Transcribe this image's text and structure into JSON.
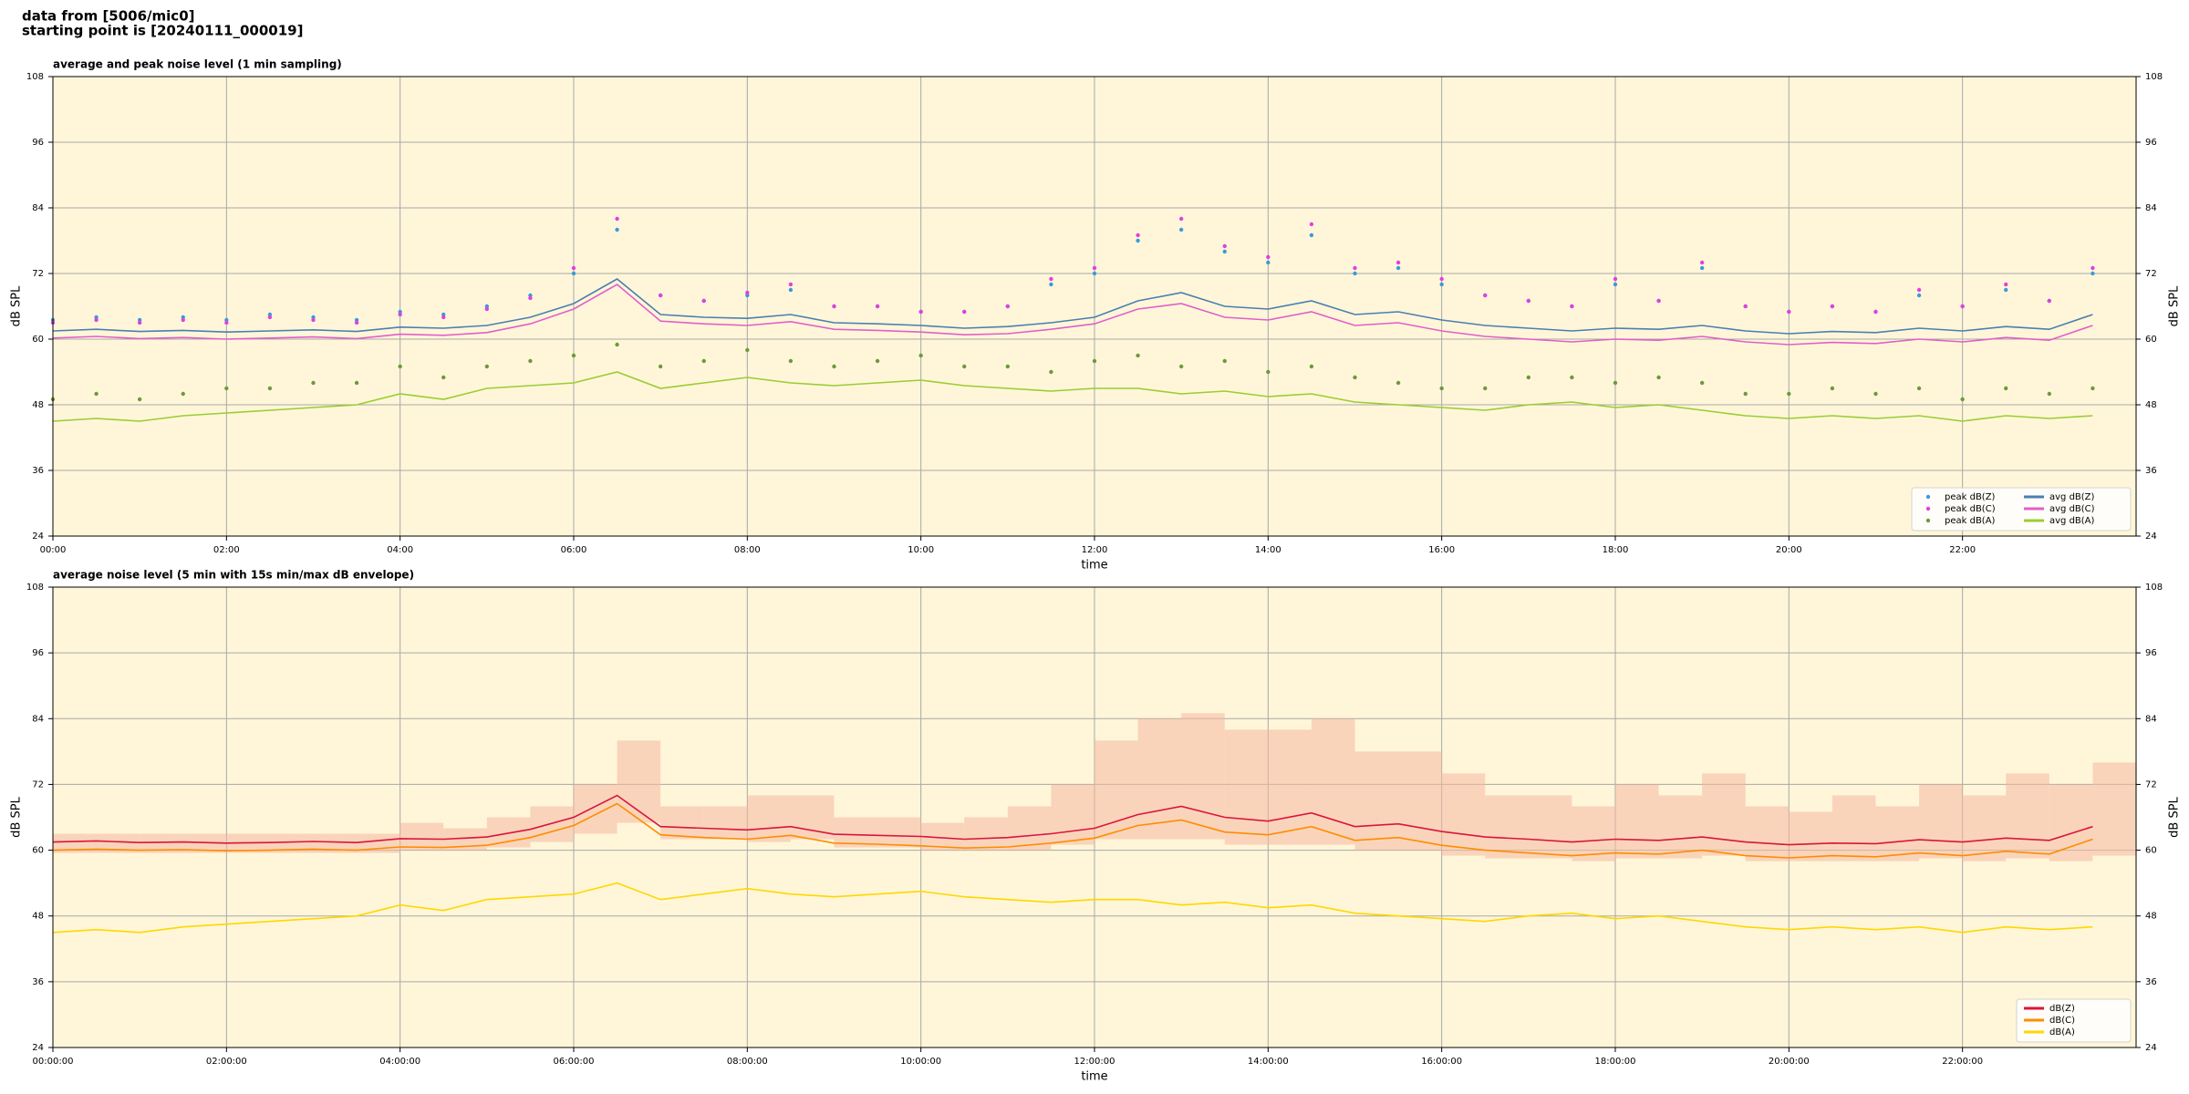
{
  "header": {
    "lines": [
      "data from [5006/mic0]",
      "starting point is [20240111_000019]"
    ]
  },
  "chart_data": [
    {
      "type": "line",
      "title": "average and peak noise level (1 min sampling)",
      "xlabel": "time",
      "ylabel": "dB SPL",
      "xlim": [
        "00:00",
        "24:00"
      ],
      "ylim": [
        24,
        108
      ],
      "xticks": [
        "00:00",
        "02:00",
        "04:00",
        "06:00",
        "08:00",
        "10:00",
        "12:00",
        "14:00",
        "16:00",
        "18:00",
        "20:00",
        "22:00"
      ],
      "yticks": [
        24,
        36,
        48,
        60,
        72,
        84,
        96,
        108
      ],
      "grid": true,
      "legend": "lower right",
      "legend_columns": 2,
      "x": [
        "00:00",
        "00:30",
        "01:00",
        "01:30",
        "02:00",
        "02:30",
        "03:00",
        "03:30",
        "04:00",
        "04:30",
        "05:00",
        "05:30",
        "06:00",
        "06:30",
        "07:00",
        "07:30",
        "08:00",
        "08:30",
        "09:00",
        "09:30",
        "10:00",
        "10:30",
        "11:00",
        "11:30",
        "12:00",
        "12:30",
        "13:00",
        "13:30",
        "14:00",
        "14:30",
        "15:00",
        "15:30",
        "16:00",
        "16:30",
        "17:00",
        "17:30",
        "18:00",
        "18:30",
        "19:00",
        "19:30",
        "20:00",
        "20:30",
        "21:00",
        "21:30",
        "22:00",
        "22:30",
        "23:00",
        "23:30"
      ],
      "series": [
        {
          "name": "peak dB(Z)",
          "style": "dots",
          "color": "#3a9ad9",
          "values": [
            63.5,
            64,
            63.5,
            64,
            63.5,
            64.5,
            64,
            63.5,
            65,
            64.5,
            66,
            68,
            72,
            80,
            68,
            67,
            68,
            69,
            66,
            66,
            65,
            65,
            66,
            70,
            72,
            78,
            80,
            76,
            74,
            79,
            72,
            73,
            70,
            68,
            67,
            66,
            70,
            67,
            73,
            66,
            65,
            66,
            65,
            68,
            66,
            69,
            67,
            72
          ]
        },
        {
          "name": "peak dB(C)",
          "style": "dots",
          "color": "#e040e0",
          "values": [
            63,
            63.5,
            63,
            63.5,
            63,
            64,
            63.5,
            63,
            64.5,
            64,
            65.5,
            67.5,
            73,
            82,
            68,
            67,
            68.5,
            70,
            66,
            66,
            65,
            65,
            66,
            71,
            73,
            79,
            82,
            77,
            75,
            81,
            73,
            74,
            71,
            68,
            67,
            66,
            71,
            67,
            74,
            66,
            65,
            66,
            65,
            69,
            66,
            70,
            67,
            73
          ]
        },
        {
          "name": "peak dB(A)",
          "style": "dots",
          "color": "#6a9a3a",
          "values": [
            49,
            50,
            49,
            50,
            51,
            51,
            52,
            52,
            55,
            53,
            55,
            56,
            57,
            59,
            55,
            56,
            58,
            56,
            55,
            56,
            57,
            55,
            55,
            54,
            56,
            57,
            55,
            56,
            54,
            55,
            53,
            52,
            51,
            51,
            53,
            53,
            52,
            53,
            52,
            50,
            50,
            51,
            50,
            51,
            49,
            51,
            50,
            51
          ]
        },
        {
          "name": "avg dB(Z)",
          "style": "line",
          "color": "#4a7fb0",
          "values": [
            61.5,
            61.8,
            61.4,
            61.6,
            61.3,
            61.5,
            61.7,
            61.4,
            62.2,
            62,
            62.5,
            64,
            66.5,
            71,
            64.5,
            64,
            63.8,
            64.5,
            63,
            62.8,
            62.5,
            62,
            62.3,
            63,
            64,
            67,
            68.5,
            66,
            65.5,
            67,
            64.5,
            65,
            63.5,
            62.5,
            62,
            61.5,
            62,
            61.8,
            62.5,
            61.5,
            61,
            61.4,
            61.2,
            62,
            61.5,
            62.3,
            61.8,
            64.5
          ]
        },
        {
          "name": "avg dB(C)",
          "style": "line",
          "color": "#e060c8",
          "values": [
            60.2,
            60.5,
            60.1,
            60.3,
            60,
            60.2,
            60.4,
            60.1,
            60.9,
            60.7,
            61.2,
            62.8,
            65.5,
            70,
            63.3,
            62.8,
            62.5,
            63.2,
            61.8,
            61.6,
            61.3,
            60.8,
            61,
            61.8,
            62.8,
            65.5,
            66.5,
            64,
            63.5,
            65,
            62.5,
            63,
            61.5,
            60.5,
            60,
            59.5,
            60,
            59.8,
            60.5,
            59.5,
            59,
            59.4,
            59.2,
            60,
            59.5,
            60.3,
            59.8,
            62.5
          ]
        },
        {
          "name": "avg dB(A)",
          "style": "line",
          "color": "#9acd32",
          "values": [
            45,
            45.5,
            45,
            46,
            46.5,
            47,
            47.5,
            48,
            50,
            49,
            51,
            51.5,
            52,
            54,
            51,
            52,
            53,
            52,
            51.5,
            52,
            52.5,
            51.5,
            51,
            50.5,
            51,
            51,
            50,
            50.5,
            49.5,
            50,
            48.5,
            48,
            47.5,
            47,
            48,
            48.5,
            47.5,
            48,
            47,
            46,
            45.5,
            46,
            45.5,
            46,
            45,
            46,
            45.5,
            46
          ]
        }
      ]
    },
    {
      "type": "line",
      "title": "average noise level (5 min with 15s min/max dB envelope)",
      "xlabel": "time",
      "ylabel": "dB SPL",
      "xlim": [
        "00:00:00",
        "24:00:00"
      ],
      "ylim": [
        24,
        108
      ],
      "xticks": [
        "00:00:00",
        "02:00:00",
        "04:00:00",
        "06:00:00",
        "08:00:00",
        "10:00:00",
        "12:00:00",
        "14:00:00",
        "16:00:00",
        "18:00:00",
        "20:00:00",
        "22:00:00"
      ],
      "yticks": [
        24,
        36,
        48,
        60,
        72,
        84,
        96,
        108
      ],
      "grid": true,
      "legend": "lower right",
      "legend_columns": 1,
      "x": [
        "00:00:00",
        "00:30:00",
        "01:00:00",
        "01:30:00",
        "02:00:00",
        "02:30:00",
        "03:00:00",
        "03:30:00",
        "04:00:00",
        "04:30:00",
        "05:00:00",
        "05:30:00",
        "06:00:00",
        "06:30:00",
        "07:00:00",
        "07:30:00",
        "08:00:00",
        "08:30:00",
        "09:00:00",
        "09:30:00",
        "10:00:00",
        "10:30:00",
        "11:00:00",
        "11:30:00",
        "12:00:00",
        "12:30:00",
        "13:00:00",
        "13:30:00",
        "14:00:00",
        "14:30:00",
        "15:00:00",
        "15:30:00",
        "16:00:00",
        "16:30:00",
        "17:00:00",
        "17:30:00",
        "18:00:00",
        "18:30:00",
        "19:00:00",
        "19:30:00",
        "20:00:00",
        "20:30:00",
        "21:00:00",
        "21:30:00",
        "22:00:00",
        "22:30:00",
        "23:00:00",
        "23:30:00"
      ],
      "envelope": {
        "color": "#f4b8a0",
        "max": [
          63,
          63,
          63,
          63,
          63,
          63,
          63,
          63,
          65,
          64,
          66,
          68,
          72,
          80,
          68,
          68,
          70,
          70,
          66,
          66,
          65,
          66,
          68,
          72,
          80,
          84,
          85,
          82,
          82,
          84,
          78,
          78,
          74,
          70,
          70,
          68,
          72,
          70,
          74,
          68,
          67,
          70,
          68,
          72,
          70,
          74,
          72,
          76
        ],
        "min": [
          59.5,
          59.5,
          59.5,
          59.5,
          59.5,
          59.5,
          59.5,
          59.5,
          60,
          60,
          60.5,
          61.5,
          63,
          65,
          62,
          62,
          61.5,
          62,
          60.5,
          60.5,
          60,
          60,
          60,
          61,
          62,
          62,
          62,
          61,
          61,
          61,
          60,
          60,
          59,
          58.5,
          58.5,
          58,
          58.5,
          58.5,
          59,
          58,
          58,
          58,
          58,
          58.5,
          58,
          58.5,
          58,
          59
        ]
      },
      "series": [
        {
          "name": "dB(Z)",
          "style": "line",
          "color": "#dc143c",
          "values": [
            61.5,
            61.7,
            61.4,
            61.5,
            61.3,
            61.4,
            61.6,
            61.4,
            62.1,
            62,
            62.4,
            63.8,
            66,
            70,
            64.3,
            64,
            63.7,
            64.3,
            62.9,
            62.7,
            62.5,
            62,
            62.3,
            63,
            64,
            66.5,
            68,
            66,
            65.3,
            66.8,
            64.3,
            64.8,
            63.4,
            62.4,
            62,
            61.5,
            62,
            61.8,
            62.4,
            61.5,
            61,
            61.3,
            61.2,
            61.9,
            61.5,
            62.2,
            61.8,
            64.3
          ]
        },
        {
          "name": "dB(C)",
          "style": "line",
          "color": "#ff8c00",
          "values": [
            60,
            60.2,
            60,
            60.1,
            59.9,
            60,
            60.2,
            60,
            60.6,
            60.5,
            60.9,
            62.3,
            64.5,
            68.5,
            62.8,
            62.3,
            62,
            62.7,
            61.3,
            61.1,
            60.8,
            60.4,
            60.6,
            61.3,
            62.2,
            64.5,
            65.5,
            63.3,
            62.8,
            64.3,
            61.8,
            62.3,
            60.9,
            60,
            59.5,
            59,
            59.5,
            59.3,
            60,
            59,
            58.6,
            59,
            58.8,
            59.5,
            59,
            59.8,
            59.3,
            62
          ]
        },
        {
          "name": "dB(A)",
          "style": "line",
          "color": "#ffd700",
          "values": [
            45,
            45.5,
            45,
            46,
            46.5,
            47,
            47.5,
            48,
            50,
            49,
            51,
            51.5,
            52,
            54,
            51,
            52,
            53,
            52,
            51.5,
            52,
            52.5,
            51.5,
            51,
            50.5,
            51,
            51,
            50,
            50.5,
            49.5,
            50,
            48.5,
            48,
            47.5,
            47,
            48,
            48.5,
            47.5,
            48,
            47,
            46,
            45.5,
            46,
            45.5,
            46,
            45,
            46,
            45.5,
            46
          ]
        }
      ]
    }
  ]
}
